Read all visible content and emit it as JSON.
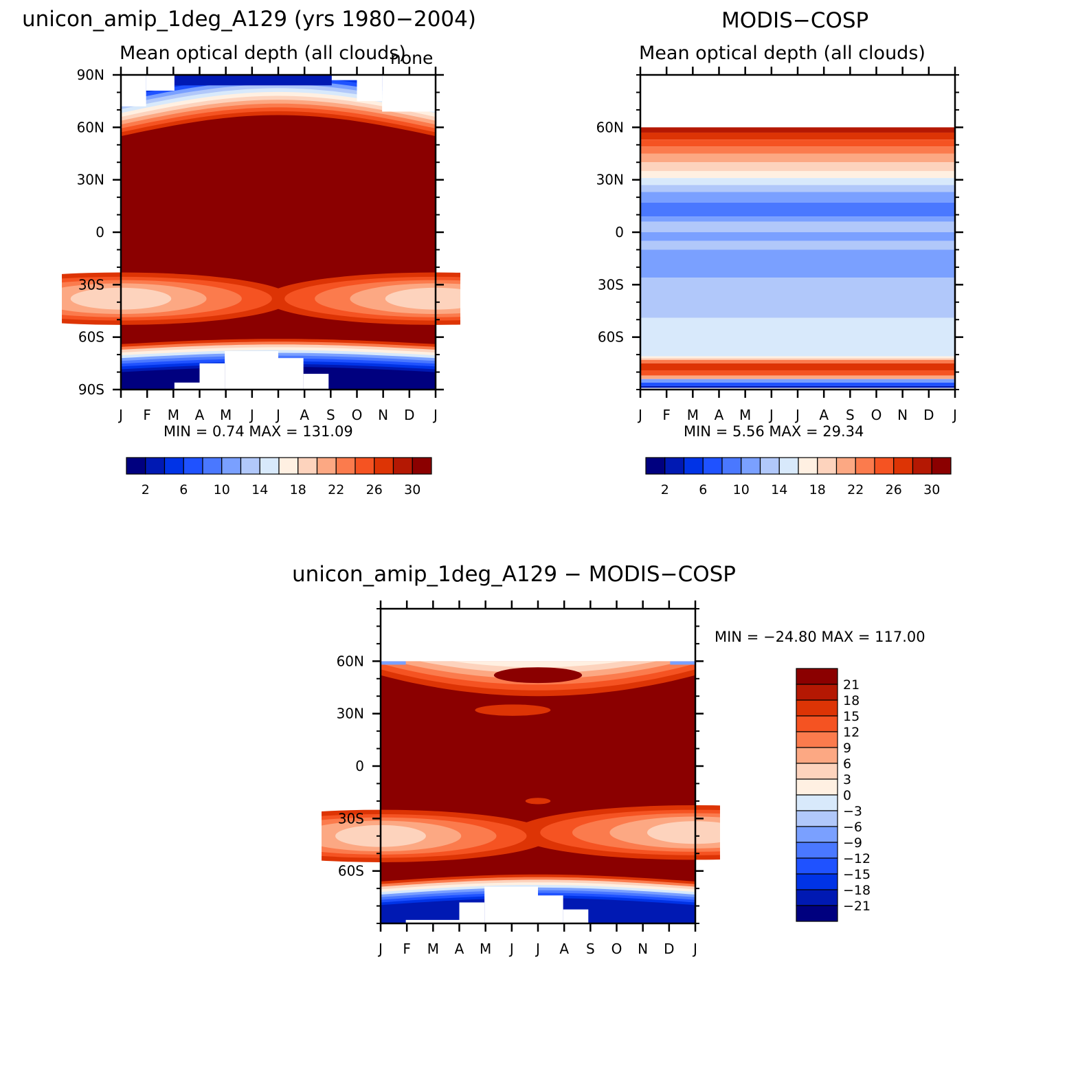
{
  "chart_data": [
    {
      "id": "model",
      "type": "heatmap",
      "title": "unicon_amip_1deg_A129 (yrs 1980−2004)",
      "subtitle": "Mean optical depth (all clouds)",
      "corner_label": "none",
      "x_ticks": [
        "J",
        "F",
        "M",
        "A",
        "M",
        "J",
        "J",
        "A",
        "S",
        "O",
        "N",
        "D",
        "J"
      ],
      "y_ticks": [
        "90N",
        "60N",
        "30N",
        "0",
        "30S",
        "60S",
        "90S"
      ],
      "y_tick_values": [
        90,
        60,
        30,
        0,
        -30,
        -60,
        -90
      ],
      "ylim": [
        -90,
        90
      ],
      "minmax": "MIN =    0.74  MAX =  131.09",
      "min": 0.74,
      "max": 131.09,
      "colorbar_labels": [
        "2",
        "6",
        "10",
        "14",
        "18",
        "22",
        "26",
        "30"
      ]
    },
    {
      "id": "obs",
      "type": "heatmap",
      "title": "MODIS−COSP",
      "subtitle": "Mean optical depth (all clouds)",
      "x_ticks": [
        "J",
        "F",
        "M",
        "A",
        "M",
        "J",
        "J",
        "A",
        "S",
        "O",
        "N",
        "D",
        "J"
      ],
      "y_ticks": [
        "60N",
        "30N",
        "0",
        "30S",
        "60S"
      ],
      "y_tick_values": [
        60,
        30,
        0,
        -30,
        -60
      ],
      "ylim": [
        -90,
        90
      ],
      "minmax": "MIN =     5.56  MAX =   29.34",
      "min": 5.56,
      "max": 29.34,
      "colorbar_labels": [
        "2",
        "6",
        "10",
        "14",
        "18",
        "22",
        "26",
        "30"
      ]
    },
    {
      "id": "diff",
      "type": "heatmap",
      "title": "unicon_amip_1deg_A129  −  MODIS−COSP",
      "x_ticks": [
        "J",
        "F",
        "M",
        "A",
        "M",
        "J",
        "J",
        "A",
        "S",
        "O",
        "N",
        "D",
        "J"
      ],
      "y_ticks": [
        "60N",
        "30N",
        "0",
        "30S",
        "60S"
      ],
      "y_tick_values": [
        60,
        30,
        0,
        -30,
        -60
      ],
      "ylim": [
        -90,
        90
      ],
      "minmax": "MIN = −24.80  MAX =  117.00",
      "min": -24.8,
      "max": 117.0,
      "colorbar_labels": [
        "21",
        "18",
        "15",
        "12",
        "9",
        "6",
        "3",
        "0",
        "−3",
        "−6",
        "−9",
        "−12",
        "−15",
        "−18",
        "−21"
      ]
    }
  ],
  "colors": {
    "palette": [
      "#00007f",
      "#0019b3",
      "#0033e6",
      "#1f52ff",
      "#4a78ff",
      "#7aa0ff",
      "#b1c8fa",
      "#d8e9fb",
      "#fff0e2",
      "#fdd3bd",
      "#fca883",
      "#fb7b4d",
      "#f55322",
      "#dd3405",
      "#b41803",
      "#8b0000"
    ]
  }
}
